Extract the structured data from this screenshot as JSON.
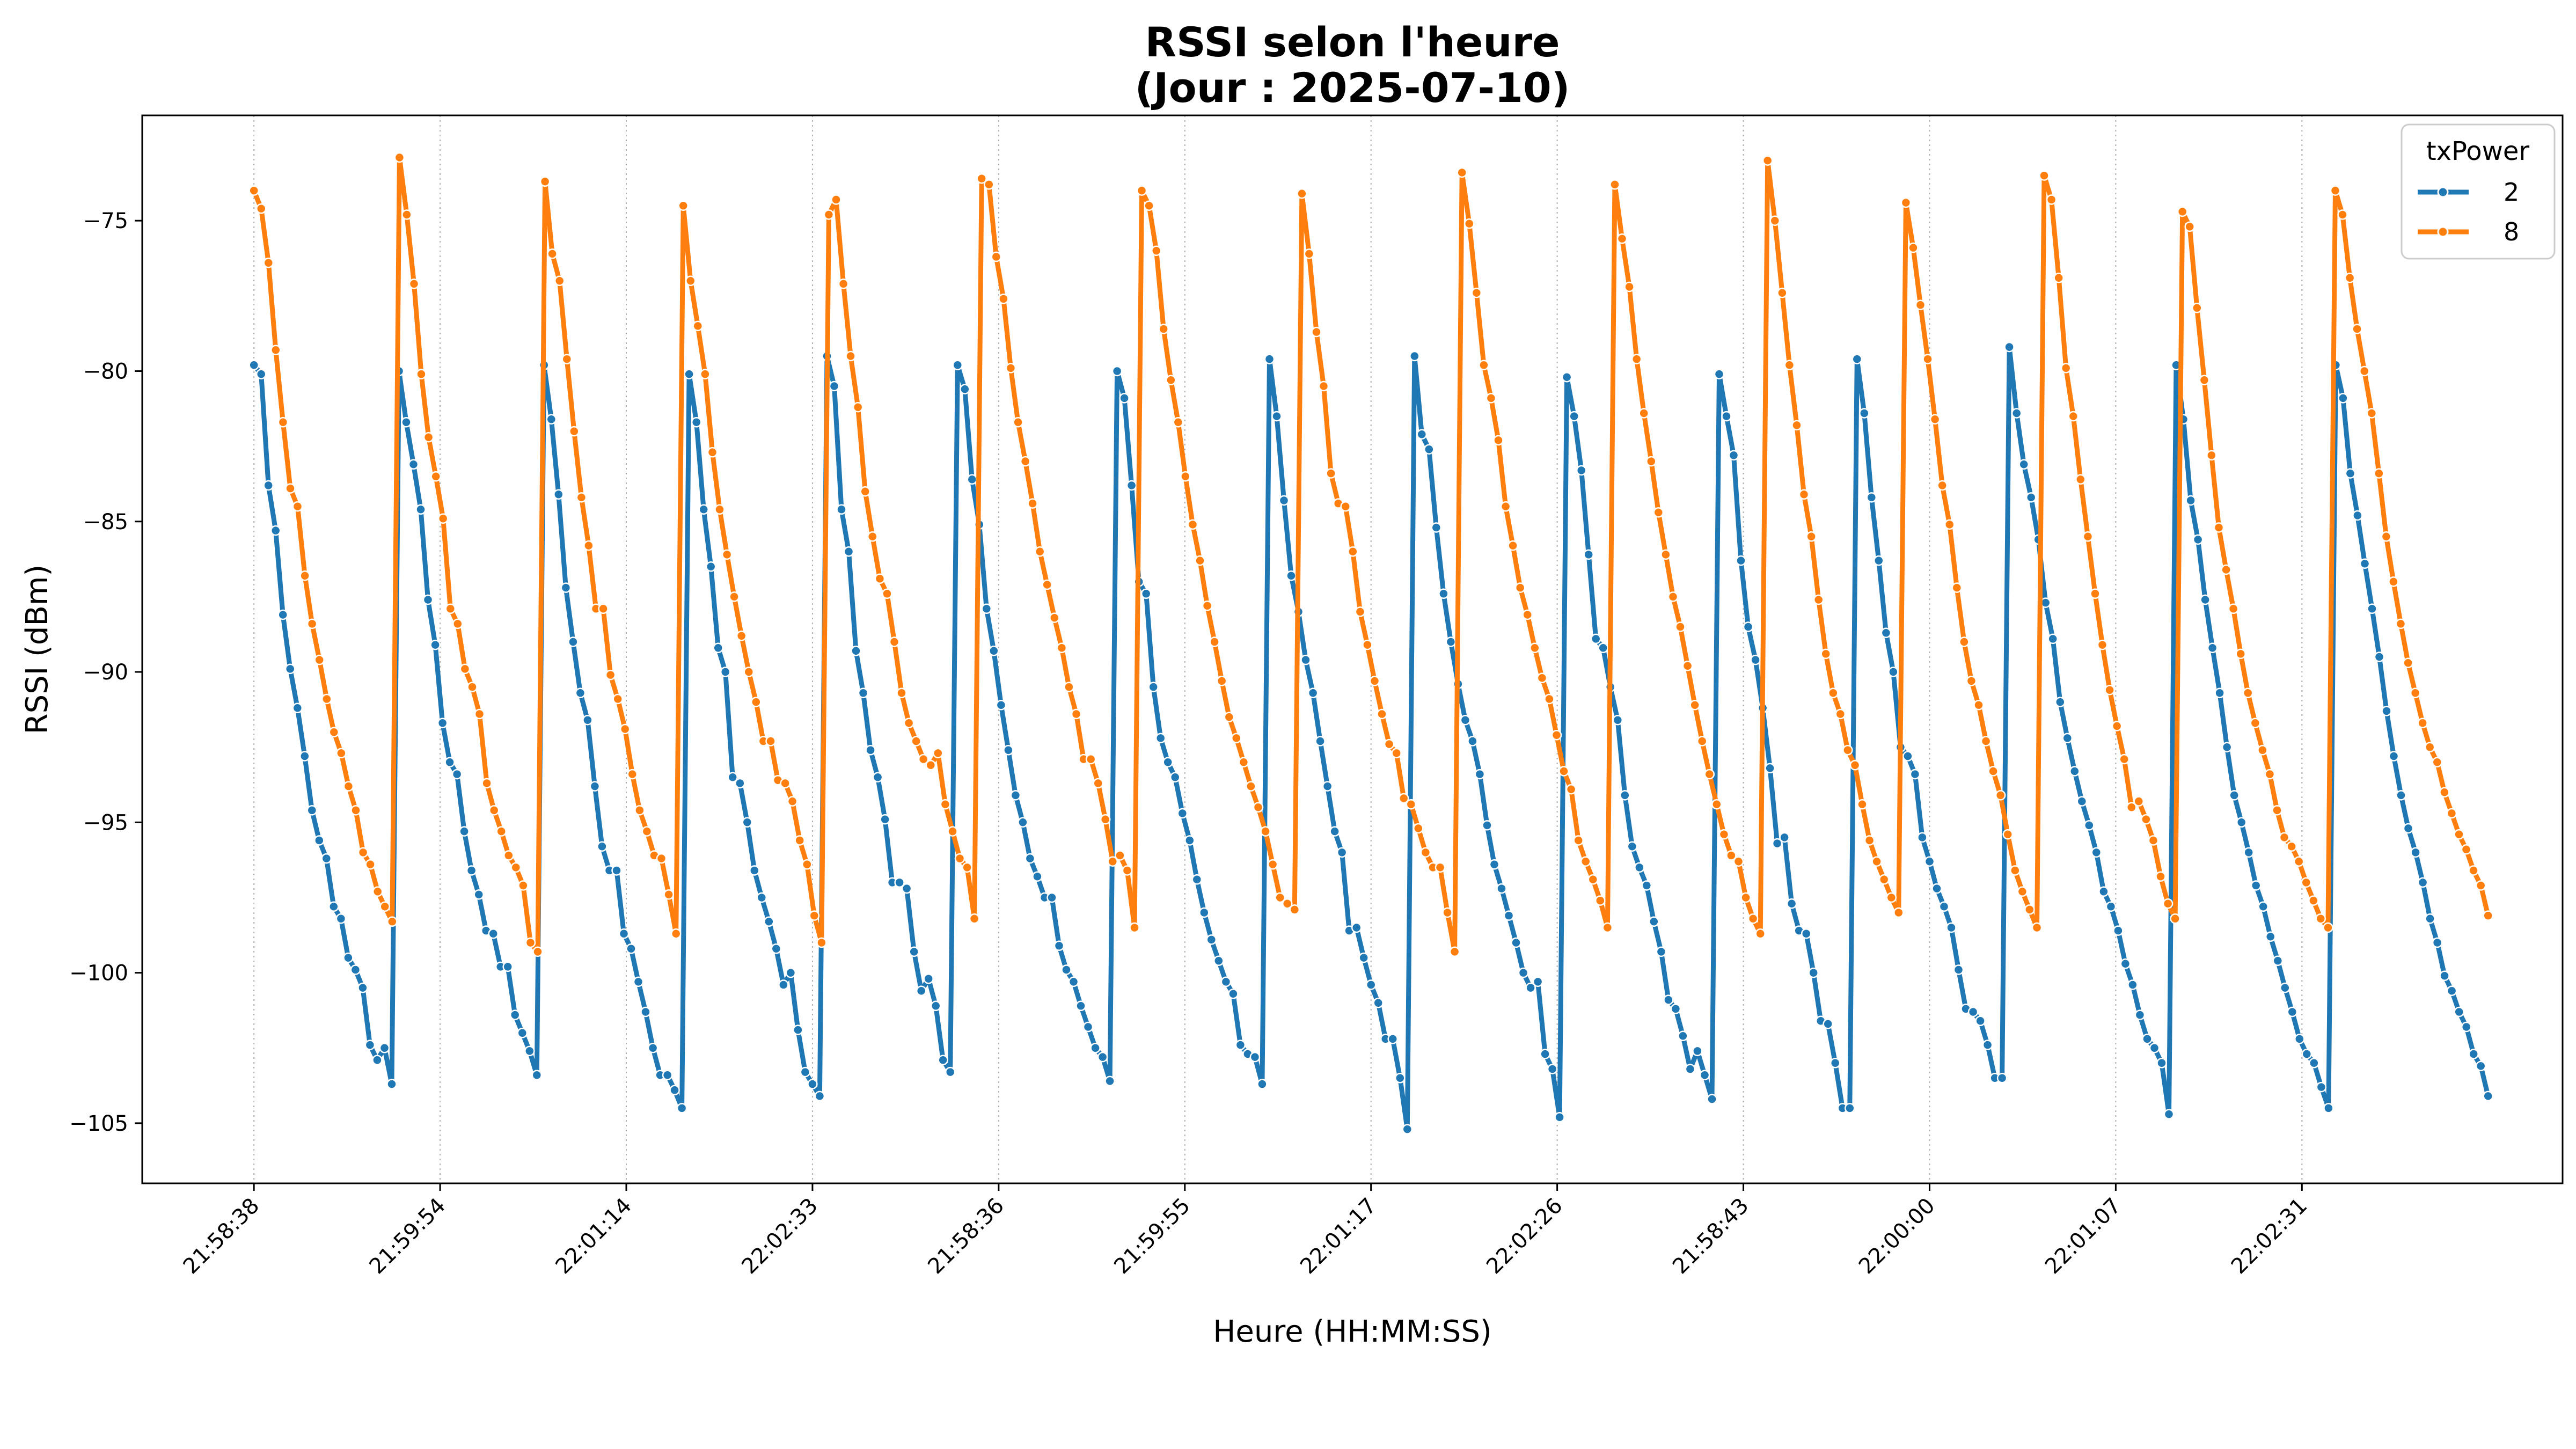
{
  "chart_data": {
    "type": "line",
    "title": "RSSI selon l'heure\n(Jour : 2025-07-10)",
    "title_lines": [
      "RSSI selon l'heure",
      "(Jour : 2025-07-10)"
    ],
    "xlabel": "Heure (HH:MM:SS)",
    "ylabel": "RSSI (dBm)",
    "x_tick_labels": [
      "21:58:38",
      "21:59:54",
      "22:01:14",
      "22:02:33",
      "21:58:36",
      "21:59:55",
      "22:01:17",
      "22:02:26",
      "21:58:43",
      "22:00:00",
      "22:01:07",
      "22:02:31"
    ],
    "y_ticks": [
      -75,
      -80,
      -85,
      -90,
      -95,
      -100,
      -105
    ],
    "y_tick_labels": [
      "−75",
      "−80",
      "−85",
      "−90",
      "−95",
      "−100",
      "−105"
    ],
    "ylim": [
      -107,
      -71.5
    ],
    "xlim": [
      -6,
      124
    ],
    "grid": "vertical dotted",
    "legend_position": "top-right",
    "legend_title": "txPower",
    "colors": {
      "s2": "#1f77b4",
      "s8": "#ff7f0e"
    },
    "series": [
      {
        "name": "2",
        "values": [
          -79.8,
          -80.1,
          -83.8,
          -85.3,
          -88.1,
          -89.9,
          -91.2,
          -92.8,
          -94.6,
          -95.6,
          -96.2,
          -97.8,
          -98.2,
          -99.5,
          -99.9,
          -100.5,
          -102.4,
          -102.9,
          -102.5,
          -103.7,
          -80.0,
          -81.7,
          -83.1,
          -84.6,
          -87.6,
          -89.1,
          -91.7,
          -93.0,
          -93.4,
          -95.3,
          -96.6,
          -97.4,
          -98.6,
          -98.7,
          -99.8,
          -99.8,
          -101.4,
          -102.0,
          -102.6,
          -103.4,
          -79.8,
          -81.6,
          -84.1,
          -87.2,
          -89.0,
          -90.7,
          -91.6,
          -93.8,
          -95.8,
          -96.6,
          -96.6,
          -98.7,
          -99.2,
          -100.3,
          -101.3,
          -102.5,
          -103.4,
          -103.4,
          -103.9,
          -104.5,
          -80.1,
          -81.7,
          -84.6,
          -86.5,
          -89.2,
          -90.0,
          -93.5,
          -93.7,
          -95.0,
          -96.6,
          -97.5,
          -98.3,
          -99.2,
          -100.4,
          -100.0,
          -101.9,
          -103.3,
          -103.7,
          -104.1,
          -79.5,
          -80.5,
          -84.6,
          -86.0,
          -89.3,
          -90.7,
          -92.6,
          -93.5,
          -94.9,
          -97.0,
          -97.0,
          -97.2,
          -99.3,
          -100.6,
          -100.2,
          -101.1,
          -102.9,
          -103.3,
          -79.8,
          -80.6,
          -83.6,
          -85.1,
          -87.9,
          -89.3,
          -91.1,
          -92.6,
          -94.1,
          -95.0,
          -96.2,
          -96.8,
          -97.5,
          -97.5,
          -99.1,
          -99.9,
          -100.3,
          -101.1,
          -101.8,
          -102.5,
          -102.8,
          -103.6,
          -80.0,
          -80.9,
          -83.8,
          -87.0,
          -87.4,
          -90.5,
          -92.2,
          -93.0,
          -93.5,
          -94.7,
          -95.6,
          -96.9,
          -98.0,
          -98.9,
          -99.6,
          -100.3,
          -100.7,
          -102.4,
          -102.7,
          -102.8,
          -103.7,
          -79.6,
          -81.5,
          -84.3,
          -86.8,
          -88.0,
          -89.6,
          -90.7,
          -92.3,
          -93.8,
          -95.3,
          -96.0,
          -98.6,
          -98.5,
          -99.5,
          -100.4,
          -101.0,
          -102.2,
          -102.2,
          -103.5,
          -105.2,
          -79.5,
          -82.1,
          -82.6,
          -85.2,
          -87.4,
          -89.0,
          -90.4,
          -91.6,
          -92.3,
          -93.4,
          -95.1,
          -96.4,
          -97.2,
          -98.1,
          -99.0,
          -100.0,
          -100.5,
          -100.3,
          -102.7,
          -103.2,
          -104.8,
          -80.2,
          -81.5,
          -83.3,
          -86.1,
          -88.9,
          -89.2,
          -90.5,
          -91.6,
          -94.1,
          -95.8,
          -96.5,
          -97.1,
          -98.3,
          -99.3,
          -100.9,
          -101.2,
          -102.1,
          -103.2,
          -102.6,
          -103.4,
          -104.2,
          -80.1,
          -81.5,
          -82.8,
          -86.3,
          -88.5,
          -89.6,
          -91.2,
          -93.2,
          -95.7,
          -95.5,
          -97.7,
          -98.6,
          -98.7,
          -100.0,
          -101.6,
          -101.7,
          -103.0,
          -104.5,
          -104.5,
          -79.6,
          -81.4,
          -84.2,
          -86.3,
          -88.7,
          -90.0,
          -92.5,
          -92.8,
          -93.4,
          -95.5,
          -96.3,
          -97.2,
          -97.8,
          -98.5,
          -99.9,
          -101.2,
          -101.3,
          -101.6,
          -102.4,
          -103.5,
          -103.5,
          -79.2,
          -81.4,
          -83.1,
          -84.2,
          -85.6,
          -87.7,
          -88.9,
          -91.0,
          -92.2,
          -93.3,
          -94.3,
          -95.1,
          -96.0,
          -97.3,
          -97.8,
          -98.6,
          -99.7,
          -100.4,
          -101.4,
          -102.2,
          -102.5,
          -103.0,
          -104.7,
          -79.8,
          -81.6,
          -84.3,
          -85.6,
          -87.6,
          -89.2,
          -90.7,
          -92.5,
          -94.1,
          -95.0,
          -96.0,
          -97.1,
          -97.8,
          -98.8,
          -99.6,
          -100.5,
          -101.3,
          -102.2,
          -102.7,
          -103.0,
          -103.8,
          -104.5,
          -79.8,
          -80.9,
          -83.4,
          -84.8,
          -86.4,
          -87.9,
          -89.5,
          -91.3,
          -92.8,
          -94.1,
          -95.2,
          -96.0,
          -97.0,
          -98.2,
          -99.0,
          -100.1,
          -100.6,
          -101.3,
          -101.8,
          -102.7,
          -103.1,
          -104.1
        ]
      },
      {
        "name": "8",
        "values": [
          -74.0,
          -74.6,
          -76.4,
          -79.3,
          -81.7,
          -83.9,
          -84.5,
          -86.8,
          -88.4,
          -89.6,
          -90.9,
          -92.0,
          -92.7,
          -93.8,
          -94.6,
          -96.0,
          -96.4,
          -97.3,
          -97.8,
          -98.3,
          -72.9,
          -74.8,
          -77.1,
          -80.1,
          -82.2,
          -83.5,
          -84.9,
          -87.9,
          -88.4,
          -89.9,
          -90.5,
          -91.4,
          -93.7,
          -94.6,
          -95.3,
          -96.1,
          -96.5,
          -97.1,
          -99.0,
          -99.3,
          -73.7,
          -76.1,
          -77.0,
          -79.6,
          -82.0,
          -84.2,
          -85.8,
          -87.9,
          -87.9,
          -90.1,
          -90.9,
          -91.9,
          -93.4,
          -94.6,
          -95.3,
          -96.1,
          -96.2,
          -97.4,
          -98.7,
          -74.5,
          -77.0,
          -78.5,
          -80.1,
          -82.7,
          -84.6,
          -86.1,
          -87.5,
          -88.8,
          -90.0,
          -91.0,
          -92.3,
          -92.3,
          -93.6,
          -93.7,
          -94.3,
          -95.6,
          -96.4,
          -98.1,
          -99.0,
          -74.8,
          -74.3,
          -77.1,
          -79.5,
          -81.2,
          -84.0,
          -85.5,
          -86.9,
          -87.4,
          -89.0,
          -90.7,
          -91.7,
          -92.3,
          -92.9,
          -93.1,
          -92.7,
          -94.4,
          -95.3,
          -96.2,
          -96.5,
          -98.2,
          -73.6,
          -73.8,
          -76.2,
          -77.6,
          -79.9,
          -81.7,
          -83.0,
          -84.4,
          -86.0,
          -87.1,
          -88.2,
          -89.2,
          -90.5,
          -91.4,
          -92.9,
          -92.9,
          -93.7,
          -94.9,
          -96.3,
          -96.1,
          -96.6,
          -98.5,
          -74.0,
          -74.5,
          -76.0,
          -78.6,
          -80.3,
          -81.7,
          -83.5,
          -85.1,
          -86.3,
          -87.8,
          -89.0,
          -90.3,
          -91.5,
          -92.2,
          -93.0,
          -93.8,
          -94.5,
          -95.3,
          -96.4,
          -97.5,
          -97.7,
          -97.9,
          -74.1,
          -76.1,
          -78.7,
          -80.5,
          -83.4,
          -84.4,
          -84.5,
          -86.0,
          -88.0,
          -89.1,
          -90.3,
          -91.4,
          -92.4,
          -92.7,
          -94.2,
          -94.4,
          -95.2,
          -96.0,
          -96.5,
          -96.5,
          -98.0,
          -99.3,
          -73.4,
          -75.1,
          -77.4,
          -79.8,
          -80.9,
          -82.3,
          -84.5,
          -85.8,
          -87.2,
          -88.1,
          -89.2,
          -90.2,
          -90.9,
          -92.1,
          -93.3,
          -93.9,
          -95.6,
          -96.3,
          -96.9,
          -97.6,
          -98.5,
          -73.8,
          -75.6,
          -77.2,
          -79.6,
          -81.4,
          -83.0,
          -84.7,
          -86.1,
          -87.5,
          -88.5,
          -89.8,
          -91.1,
          -92.3,
          -93.4,
          -94.4,
          -95.4,
          -96.1,
          -96.3,
          -97.5,
          -98.2,
          -98.7,
          -73.0,
          -75.0,
          -77.4,
          -79.8,
          -81.8,
          -84.1,
          -85.5,
          -87.6,
          -89.4,
          -90.7,
          -91.4,
          -92.6,
          -93.1,
          -94.4,
          -95.6,
          -96.3,
          -96.9,
          -97.5,
          -98.0,
          -74.4,
          -75.9,
          -77.8,
          -79.6,
          -81.6,
          -83.8,
          -85.1,
          -87.2,
          -89.0,
          -90.3,
          -91.1,
          -92.3,
          -93.3,
          -94.1,
          -95.4,
          -96.6,
          -97.3,
          -97.9,
          -98.5,
          -73.5,
          -74.3,
          -76.9,
          -79.9,
          -81.5,
          -83.6,
          -85.5,
          -87.4,
          -89.1,
          -90.6,
          -91.8,
          -92.9,
          -94.5,
          -94.3,
          -94.9,
          -95.6,
          -96.8,
          -97.7,
          -98.2,
          -74.7,
          -75.2,
          -77.9,
          -80.3,
          -82.8,
          -85.2,
          -86.6,
          -87.9,
          -89.4,
          -90.7,
          -91.7,
          -92.6,
          -93.4,
          -94.6,
          -95.5,
          -95.8,
          -96.3,
          -97.0,
          -97.6,
          -98.2,
          -98.5,
          -74.0,
          -74.8,
          -76.9,
          -78.6,
          -80.0,
          -81.4,
          -83.4,
          -85.5,
          -87.0,
          -88.4,
          -89.7,
          -90.7,
          -91.7,
          -92.5,
          -93.0,
          -94.0,
          -94.7,
          -95.4,
          -95.9,
          -96.6,
          -97.1,
          -98.1
        ]
      }
    ]
  }
}
